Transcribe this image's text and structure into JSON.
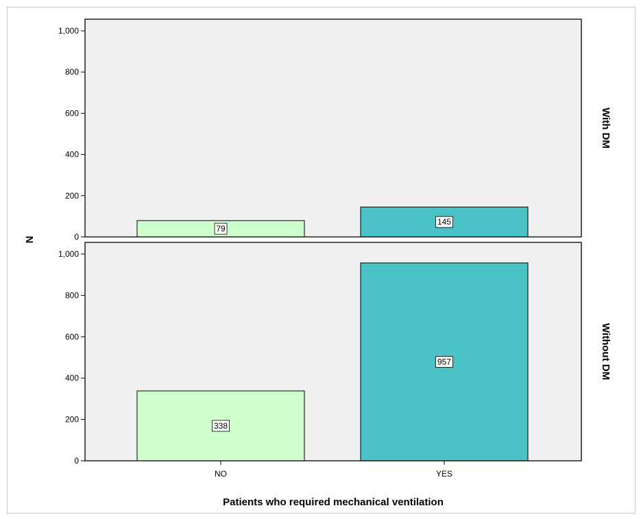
{
  "chart_data": {
    "type": "bar",
    "xlabel": "Patients who required mechanical ventilation",
    "ylabel": "N",
    "categories": [
      "NO",
      "YES"
    ],
    "ylim": [
      0,
      1000
    ],
    "yticks": [
      0,
      200,
      400,
      600,
      800,
      1000
    ],
    "ytick_labels": [
      "0",
      "200",
      "400",
      "600",
      "800",
      "1,000"
    ],
    "grid": false,
    "panels": [
      {
        "label": "With DM",
        "values": [
          79,
          145
        ]
      },
      {
        "label": "Without DM",
        "values": [
          338,
          957
        ]
      }
    ],
    "colors": {
      "NO": "#ccffcc",
      "YES": "#49c1c5",
      "panel_bg": "#f0f0f0",
      "outline": "#000000"
    }
  }
}
